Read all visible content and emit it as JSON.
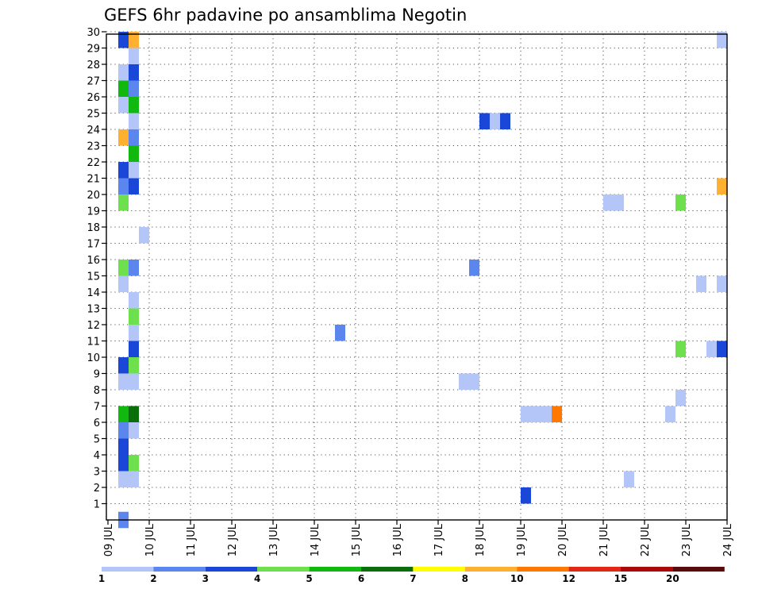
{
  "chart_data": {
    "type": "heatmap",
    "title": "GEFS 6hr padavine po ansamblima Negotin",
    "x_tick_labels": [
      "09 JUL",
      "10 JUL",
      "11 JUL",
      "12 JUL",
      "13 JUL",
      "14 JUL",
      "15 JUL",
      "16 JUL",
      "17 JUL",
      "18 JUL",
      "19 JUL",
      "20 JUL",
      "21 JUL",
      "22 JUL",
      "23 JUL",
      "24 JUL"
    ],
    "y_tick_labels": [
      "1",
      "2",
      "3",
      "4",
      "5",
      "6",
      "7",
      "8",
      "9",
      "10",
      "11",
      "12",
      "13",
      "14",
      "15",
      "16",
      "17",
      "18",
      "19",
      "20",
      "21",
      "22",
      "23",
      "24",
      "25",
      "26",
      "27",
      "28",
      "29",
      "30"
    ],
    "xlim_days": [
      0,
      15
    ],
    "ylim": [
      0,
      30
    ],
    "grid": true,
    "colorbar": {
      "levels": [
        "1",
        "2",
        "3",
        "4",
        "5",
        "6",
        "7",
        "8",
        "10",
        "12",
        "15",
        "20"
      ],
      "colors": [
        "#b4c6f8",
        "#5b86ed",
        "#1a47d8",
        "#6ee04e",
        "#10b810",
        "#0a6e0a",
        "#ffff00",
        "#ffb030",
        "#ff7800",
        "#e02814",
        "#aa0a0a",
        "#5a0a0a"
      ]
    },
    "cells": [
      {
        "x": 0.25,
        "y": 30,
        "bin": 2
      },
      {
        "x": 0.5,
        "y": 30,
        "bin": 7
      },
      {
        "x": 14.75,
        "y": 30,
        "bin": 0
      },
      {
        "x": 0.5,
        "y": 29,
        "bin": 0
      },
      {
        "x": 0.25,
        "y": 28,
        "bin": 0
      },
      {
        "x": 0.5,
        "y": 28,
        "bin": 2
      },
      {
        "x": 0.25,
        "y": 27,
        "bin": 4
      },
      {
        "x": 0.5,
        "y": 27,
        "bin": 1
      },
      {
        "x": 0.25,
        "y": 26,
        "bin": 0
      },
      {
        "x": 0.5,
        "y": 26,
        "bin": 4
      },
      {
        "x": 0.5,
        "y": 25,
        "bin": 0
      },
      {
        "x": 9.0,
        "y": 25,
        "bin": 2
      },
      {
        "x": 9.25,
        "y": 25,
        "bin": 0
      },
      {
        "x": 9.5,
        "y": 25,
        "bin": 2
      },
      {
        "x": 0.25,
        "y": 24,
        "bin": 7
      },
      {
        "x": 0.5,
        "y": 24,
        "bin": 1
      },
      {
        "x": 0.5,
        "y": 23,
        "bin": 4
      },
      {
        "x": 0.25,
        "y": 22,
        "bin": 2
      },
      {
        "x": 0.5,
        "y": 22,
        "bin": 0
      },
      {
        "x": 0.25,
        "y": 21,
        "bin": 1
      },
      {
        "x": 0.5,
        "y": 21,
        "bin": 2
      },
      {
        "x": 14.75,
        "y": 21,
        "bin": 7
      },
      {
        "x": 0.25,
        "y": 20,
        "bin": 3
      },
      {
        "x": 12.0,
        "y": 20,
        "bin": 0
      },
      {
        "x": 12.25,
        "y": 20,
        "bin": 0
      },
      {
        "x": 13.75,
        "y": 20,
        "bin": 3
      },
      {
        "x": 0.75,
        "y": 18,
        "bin": 0
      },
      {
        "x": 0.25,
        "y": 16,
        "bin": 3
      },
      {
        "x": 0.5,
        "y": 16,
        "bin": 1
      },
      {
        "x": 8.75,
        "y": 16,
        "bin": 1
      },
      {
        "x": 0.25,
        "y": 15,
        "bin": 0
      },
      {
        "x": 14.25,
        "y": 15,
        "bin": 0
      },
      {
        "x": 14.75,
        "y": 15,
        "bin": 0
      },
      {
        "x": 0.5,
        "y": 14,
        "bin": 0
      },
      {
        "x": 0.5,
        "y": 13,
        "bin": 3
      },
      {
        "x": 0.5,
        "y": 12,
        "bin": 0
      },
      {
        "x": 5.5,
        "y": 12,
        "bin": 1
      },
      {
        "x": 0.5,
        "y": 11,
        "bin": 2
      },
      {
        "x": 13.75,
        "y": 11,
        "bin": 3
      },
      {
        "x": 14.5,
        "y": 11,
        "bin": 0
      },
      {
        "x": 14.75,
        "y": 11,
        "bin": 2
      },
      {
        "x": 0.25,
        "y": 10,
        "bin": 2
      },
      {
        "x": 0.5,
        "y": 10,
        "bin": 3
      },
      {
        "x": 0.25,
        "y": 9,
        "bin": 0
      },
      {
        "x": 0.5,
        "y": 9,
        "bin": 0
      },
      {
        "x": 8.5,
        "y": 9,
        "bin": 0
      },
      {
        "x": 8.75,
        "y": 9,
        "bin": 0
      },
      {
        "x": 13.75,
        "y": 8,
        "bin": 0
      },
      {
        "x": 0.25,
        "y": 7,
        "bin": 4
      },
      {
        "x": 0.5,
        "y": 7,
        "bin": 5
      },
      {
        "x": 10.0,
        "y": 7,
        "bin": 0
      },
      {
        "x": 10.25,
        "y": 7,
        "bin": 0
      },
      {
        "x": 10.5,
        "y": 7,
        "bin": 0
      },
      {
        "x": 10.75,
        "y": 7,
        "bin": 8
      },
      {
        "x": 13.5,
        "y": 7,
        "bin": 0
      },
      {
        "x": 0.25,
        "y": 6,
        "bin": 1
      },
      {
        "x": 0.5,
        "y": 6,
        "bin": 0
      },
      {
        "x": 0.25,
        "y": 5,
        "bin": 2
      },
      {
        "x": 0.25,
        "y": 4,
        "bin": 2
      },
      {
        "x": 0.5,
        "y": 4,
        "bin": 3
      },
      {
        "x": 0.25,
        "y": 3,
        "bin": 0
      },
      {
        "x": 0.5,
        "y": 3,
        "bin": 0
      },
      {
        "x": 12.5,
        "y": 3,
        "bin": 0
      },
      {
        "x": 10.0,
        "y": 2,
        "bin": 2
      },
      {
        "x": 0.25,
        "y": 0.5,
        "bin": 1
      }
    ]
  }
}
